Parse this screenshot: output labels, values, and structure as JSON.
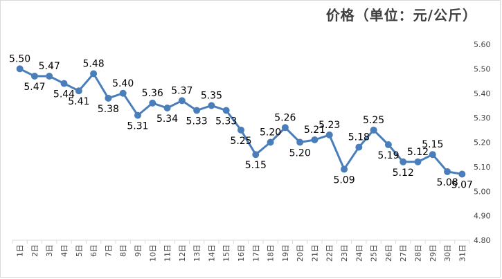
{
  "chart_data": {
    "type": "line",
    "title": "价格（单位：元/公斤）",
    "categories": [
      "1日",
      "2日",
      "3日",
      "4日",
      "5日",
      "6日",
      "7日",
      "8日",
      "9日",
      "10日",
      "11日",
      "12日",
      "13日",
      "14日",
      "15日",
      "16日",
      "17日",
      "18日",
      "19日",
      "20日",
      "21日",
      "22日",
      "23日",
      "24日",
      "25日",
      "26日",
      "27日",
      "28日",
      "29日",
      "30日",
      "31日"
    ],
    "values": [
      5.5,
      5.47,
      5.47,
      5.44,
      5.41,
      5.48,
      5.38,
      5.4,
      5.31,
      5.36,
      5.34,
      5.37,
      5.33,
      5.35,
      5.33,
      5.25,
      5.15,
      5.2,
      5.26,
      5.2,
      5.21,
      5.23,
      5.09,
      5.18,
      5.25,
      5.19,
      5.12,
      5.12,
      5.15,
      5.08,
      5.07
    ],
    "labels": [
      "5.50",
      "5.47",
      "5.47",
      "5.44",
      "5.41",
      "5.48",
      "5.38",
      "5.40",
      "5.31",
      "5.36",
      "5.34",
      "5.37",
      "5.33",
      "5.35",
      "5.33",
      "5.25",
      "5.15",
      "5.20",
      "5.26",
      "5.20",
      "5.21",
      "5.23",
      "5.09",
      "5.18",
      "5.25",
      "5.19",
      "5.12",
      "5.12",
      "5.15",
      "5.08",
      "5.07"
    ],
    "ylim": [
      4.8,
      5.6
    ],
    "yticks": [
      "4.80",
      "4.90",
      "5.00",
      "5.10",
      "5.20",
      "5.30",
      "5.40",
      "5.50",
      "5.60"
    ],
    "y_axis_side": "right",
    "grid": false,
    "line_color": "#4a7ebb"
  }
}
